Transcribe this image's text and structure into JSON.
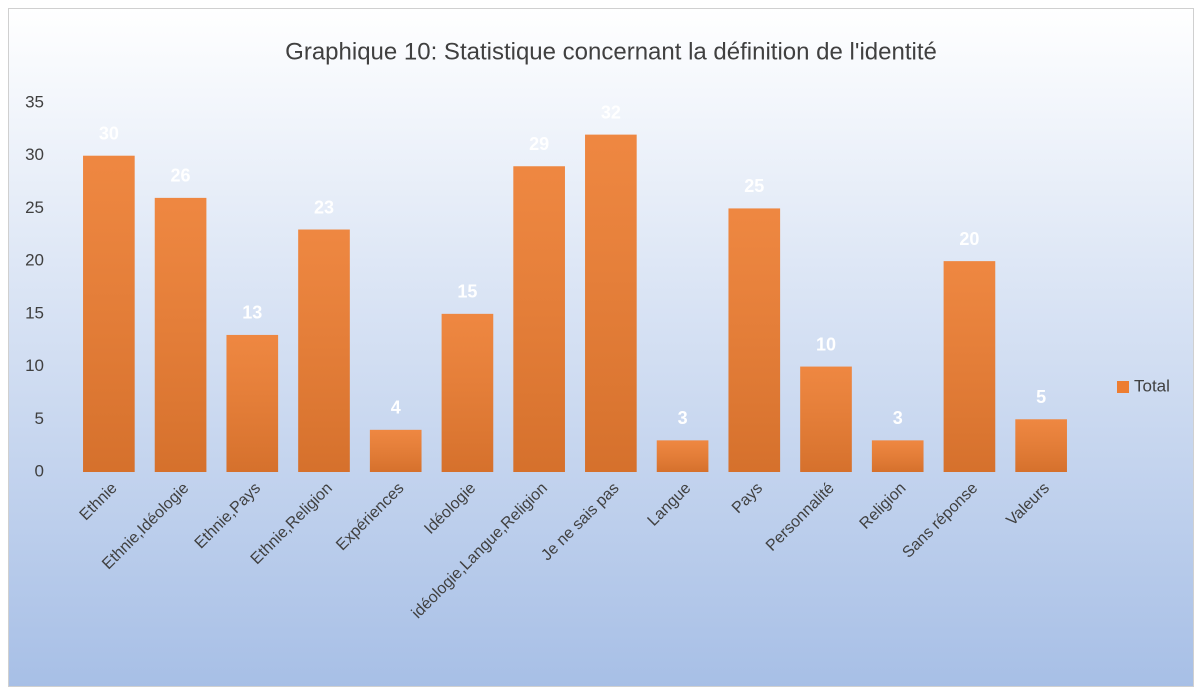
{
  "chart_data": {
    "type": "bar",
    "title": "Graphique 10: Statistique concernant la définition de l'identité",
    "categories": [
      "Ethnie",
      "Ethnie,Idéologie",
      "Ethnie,Pays",
      "Ethnie,Religion",
      "Expériences",
      "Idéologie",
      "idéologie,Langue,Religion",
      "Je ne sais pas",
      "Langue",
      "Pays",
      "Personnalité",
      "Religion",
      "Sans réponse",
      "Valeurs"
    ],
    "series": [
      {
        "name": "Total",
        "color": "#ed7d31",
        "values": [
          30,
          26,
          13,
          23,
          4,
          15,
          29,
          32,
          3,
          25,
          10,
          3,
          20,
          5
        ]
      }
    ],
    "ylim": [
      0,
      35
    ],
    "yticks": [
      0,
      5,
      10,
      15,
      20,
      25,
      30,
      35
    ],
    "grid": false,
    "legend": "right"
  }
}
